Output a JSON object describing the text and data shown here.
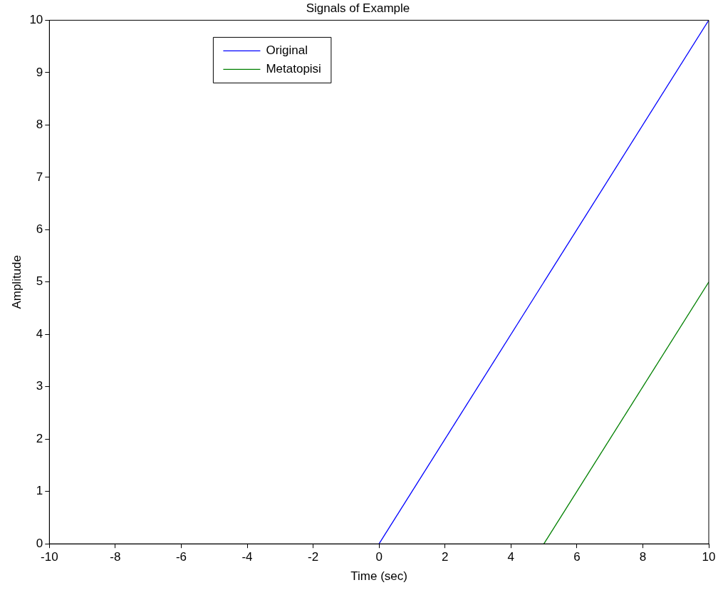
{
  "chart_data": {
    "type": "line",
    "title": "Signals of Example",
    "xlabel": "Time (sec)",
    "ylabel": "Amplitude",
    "xlim": [
      -10,
      10
    ],
    "xticks": [
      -10,
      -8,
      -6,
      -4,
      -2,
      0,
      2,
      4,
      6,
      8,
      10
    ],
    "ylim": [
      0,
      10
    ],
    "yticks": [
      0,
      1,
      2,
      3,
      4,
      5,
      6,
      7,
      8,
      9,
      10
    ],
    "series": [
      {
        "name": "Original",
        "color": "#0000ff",
        "x": [
          0,
          10
        ],
        "values": [
          0,
          10
        ]
      },
      {
        "name": "Metatopisi",
        "color": "#008000",
        "x": [
          5,
          10
        ],
        "values": [
          0,
          5
        ]
      }
    ],
    "legend": "top",
    "grid": false,
    "marker": "none",
    "line_style": "solid"
  }
}
